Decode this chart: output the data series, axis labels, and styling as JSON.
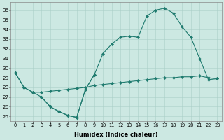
{
  "bg_color": "#cce8e2",
  "line_color": "#1e7a6e",
  "grid_color": "#aacfc8",
  "xlabel": "Humidex (Indice chaleur)",
  "xlim": [
    -0.5,
    23.5
  ],
  "ylim": [
    24.5,
    36.8
  ],
  "xticks": [
    0,
    1,
    2,
    3,
    4,
    5,
    6,
    7,
    8,
    9,
    10,
    11,
    12,
    13,
    14,
    15,
    16,
    17,
    18,
    19,
    20,
    21,
    22,
    23
  ],
  "yticks": [
    25,
    26,
    27,
    28,
    29,
    30,
    31,
    32,
    33,
    34,
    35,
    36
  ],
  "curve_low": {
    "x": [
      0,
      1,
      2,
      3,
      4,
      5,
      6,
      7,
      8,
      9
    ],
    "y": [
      29.5,
      28.0,
      27.5,
      27.0,
      26.0,
      25.5,
      25.1,
      24.9,
      27.8,
      29.3
    ]
  },
  "curve_flat": {
    "x": [
      0,
      1,
      2,
      3,
      4,
      5,
      6,
      7,
      8,
      9,
      10,
      11,
      12,
      13,
      14,
      15,
      16,
      17,
      18,
      19,
      20,
      21,
      22,
      23
    ],
    "y": [
      29.5,
      28.0,
      27.5,
      27.5,
      27.6,
      27.7,
      27.8,
      27.9,
      28.0,
      28.2,
      28.3,
      28.4,
      28.5,
      28.6,
      28.7,
      28.8,
      28.9,
      29.0,
      29.0,
      29.1,
      29.1,
      29.2,
      29.0,
      28.9
    ]
  },
  "curve_high": {
    "x": [
      3,
      4,
      5,
      6,
      7,
      8,
      9,
      10,
      11,
      12,
      13,
      14,
      15,
      16,
      17,
      18,
      19,
      20,
      21,
      22,
      23
    ],
    "y": [
      27.0,
      26.0,
      25.5,
      25.1,
      24.9,
      27.8,
      29.3,
      31.5,
      32.5,
      33.2,
      33.3,
      33.2,
      35.4,
      36.0,
      36.2,
      35.7,
      34.3,
      33.2,
      31.0,
      28.8,
      28.9
    ]
  }
}
